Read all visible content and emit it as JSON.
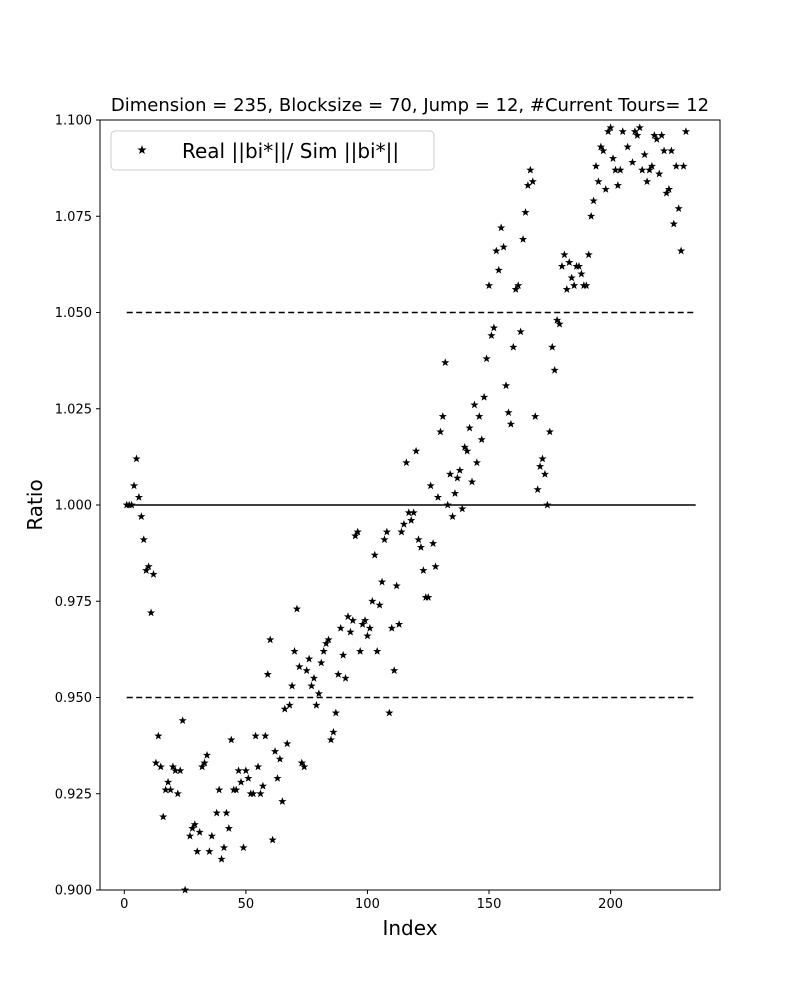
{
  "chart_data": {
    "type": "scatter",
    "title": "Dimension = 235, Blocksize = 70, Jump = 12, #Current Tours= 12",
    "xlabel": "Index",
    "ylabel": "Ratio",
    "xlim": [
      -10,
      245
    ],
    "ylim": [
      0.9,
      1.1
    ],
    "xticks": [
      0,
      50,
      100,
      150,
      200
    ],
    "yticks": [
      0.9,
      0.925,
      0.95,
      0.975,
      1.0,
      1.025,
      1.05,
      1.075,
      1.1
    ],
    "xtick_labels": [
      "0",
      "50",
      "100",
      "150",
      "200"
    ],
    "ytick_labels": [
      "0.900",
      "0.925",
      "0.950",
      "0.975",
      "1.000",
      "1.025",
      "1.050",
      "1.075",
      "1.100"
    ],
    "grid": false,
    "legend": {
      "position": "top-left",
      "entries": [
        "Real ||bi*||/ Sim ||bi*||"
      ]
    },
    "reference_lines": [
      {
        "y": 1.0,
        "style": "solid",
        "x_range": [
          1,
          235
        ]
      },
      {
        "y": 1.05,
        "style": "dashed",
        "x_range": [
          1,
          235
        ]
      },
      {
        "y": 0.95,
        "style": "dashed",
        "x_range": [
          1,
          235
        ]
      }
    ],
    "series": [
      {
        "name": "Real ||bi*||/ Sim ||bi*||",
        "marker": "star",
        "color": "#000000",
        "points": [
          [
            1,
            1.0
          ],
          [
            2,
            1.0
          ],
          [
            3,
            1.0
          ],
          [
            4,
            1.005
          ],
          [
            5,
            1.012
          ],
          [
            6,
            1.002
          ],
          [
            7,
            0.997
          ],
          [
            8,
            0.991
          ],
          [
            9,
            0.983
          ],
          [
            10,
            0.984
          ],
          [
            11,
            0.972
          ],
          [
            12,
            0.982
          ],
          [
            13,
            0.933
          ],
          [
            14,
            0.94
          ],
          [
            15,
            0.932
          ],
          [
            16,
            0.919
          ],
          [
            17,
            0.926
          ],
          [
            18,
            0.928
          ],
          [
            19,
            0.926
          ],
          [
            20,
            0.932
          ],
          [
            21,
            0.931
          ],
          [
            22,
            0.925
          ],
          [
            23,
            0.931
          ],
          [
            24,
            0.944
          ],
          [
            25,
            0.9
          ],
          [
            27,
            0.914
          ],
          [
            28,
            0.916
          ],
          [
            29,
            0.917
          ],
          [
            30,
            0.91
          ],
          [
            31,
            0.915
          ],
          [
            32,
            0.932
          ],
          [
            33,
            0.933
          ],
          [
            34,
            0.935
          ],
          [
            35,
            0.91
          ],
          [
            36,
            0.914
          ],
          [
            38,
            0.92
          ],
          [
            39,
            0.926
          ],
          [
            40,
            0.908
          ],
          [
            41,
            0.911
          ],
          [
            42,
            0.92
          ],
          [
            43,
            0.916
          ],
          [
            44,
            0.939
          ],
          [
            45,
            0.926
          ],
          [
            46,
            0.926
          ],
          [
            47,
            0.931
          ],
          [
            48,
            0.928
          ],
          [
            49,
            0.911
          ],
          [
            50,
            0.931
          ],
          [
            51,
            0.929
          ],
          [
            52,
            0.925
          ],
          [
            53,
            0.925
          ],
          [
            54,
            0.94
          ],
          [
            55,
            0.932
          ],
          [
            56,
            0.925
          ],
          [
            57,
            0.927
          ],
          [
            58,
            0.94
          ],
          [
            59,
            0.956
          ],
          [
            60,
            0.965
          ],
          [
            61,
            0.913
          ],
          [
            62,
            0.936
          ],
          [
            63,
            0.929
          ],
          [
            64,
            0.934
          ],
          [
            65,
            0.923
          ],
          [
            66,
            0.947
          ],
          [
            67,
            0.938
          ],
          [
            68,
            0.948
          ],
          [
            69,
            0.953
          ],
          [
            70,
            0.962
          ],
          [
            71,
            0.973
          ],
          [
            72,
            0.958
          ],
          [
            73,
            0.933
          ],
          [
            74,
            0.932
          ],
          [
            75,
            0.957
          ],
          [
            76,
            0.96
          ],
          [
            77,
            0.953
          ],
          [
            78,
            0.955
          ],
          [
            79,
            0.948
          ],
          [
            80,
            0.951
          ],
          [
            81,
            0.959
          ],
          [
            82,
            0.962
          ],
          [
            83,
            0.964
          ],
          [
            84,
            0.965
          ],
          [
            85,
            0.939
          ],
          [
            86,
            0.941
          ],
          [
            87,
            0.946
          ],
          [
            88,
            0.956
          ],
          [
            89,
            0.968
          ],
          [
            90,
            0.961
          ],
          [
            91,
            0.955
          ],
          [
            92,
            0.971
          ],
          [
            93,
            0.967
          ],
          [
            94,
            0.97
          ],
          [
            95,
            0.992
          ],
          [
            96,
            0.993
          ],
          [
            97,
            0.962
          ],
          [
            98,
            0.969
          ],
          [
            99,
            0.97
          ],
          [
            100,
            0.966
          ],
          [
            101,
            0.968
          ],
          [
            102,
            0.975
          ],
          [
            103,
            0.987
          ],
          [
            104,
            0.962
          ],
          [
            105,
            0.974
          ],
          [
            106,
            0.98
          ],
          [
            107,
            0.991
          ],
          [
            108,
            0.993
          ],
          [
            109,
            0.946
          ],
          [
            110,
            0.968
          ],
          [
            111,
            0.957
          ],
          [
            112,
            0.979
          ],
          [
            113,
            0.969
          ],
          [
            114,
            0.993
          ],
          [
            115,
            0.995
          ],
          [
            116,
            1.011
          ],
          [
            117,
            0.998
          ],
          [
            118,
            0.996
          ],
          [
            119,
            0.998
          ],
          [
            120,
            1.014
          ],
          [
            121,
            0.991
          ],
          [
            122,
            0.989
          ],
          [
            123,
            0.983
          ],
          [
            124,
            0.976
          ],
          [
            125,
            0.976
          ],
          [
            126,
            1.005
          ],
          [
            127,
            0.99
          ],
          [
            128,
            0.984
          ],
          [
            129,
            1.002
          ],
          [
            130,
            1.019
          ],
          [
            131,
            1.023
          ],
          [
            132,
            1.037
          ],
          [
            133,
            1.0
          ],
          [
            134,
            1.008
          ],
          [
            135,
            0.997
          ],
          [
            136,
            1.003
          ],
          [
            137,
            1.007
          ],
          [
            138,
            1.009
          ],
          [
            139,
            0.999
          ],
          [
            140,
            1.015
          ],
          [
            141,
            1.014
          ],
          [
            142,
            1.02
          ],
          [
            143,
            1.006
          ],
          [
            144,
            1.026
          ],
          [
            145,
            1.011
          ],
          [
            146,
            1.023
          ],
          [
            147,
            1.017
          ],
          [
            148,
            1.028
          ],
          [
            149,
            1.038
          ],
          [
            150,
            1.057
          ],
          [
            151,
            1.044
          ],
          [
            152,
            1.046
          ],
          [
            153,
            1.066
          ],
          [
            154,
            1.061
          ],
          [
            155,
            1.072
          ],
          [
            156,
            1.067
          ],
          [
            157,
            1.031
          ],
          [
            158,
            1.024
          ],
          [
            159,
            1.021
          ],
          [
            160,
            1.041
          ],
          [
            161,
            1.056
          ],
          [
            162,
            1.057
          ],
          [
            163,
            1.045
          ],
          [
            164,
            1.069
          ],
          [
            165,
            1.076
          ],
          [
            166,
            1.083
          ],
          [
            167,
            1.087
          ],
          [
            168,
            1.084
          ],
          [
            169,
            1.023
          ],
          [
            170,
            1.004
          ],
          [
            171,
            1.01
          ],
          [
            172,
            1.012
          ],
          [
            173,
            1.008
          ],
          [
            174,
            1.0
          ],
          [
            175,
            1.019
          ],
          [
            176,
            1.041
          ],
          [
            177,
            1.035
          ],
          [
            178,
            1.048
          ],
          [
            179,
            1.047
          ],
          [
            180,
            1.062
          ],
          [
            181,
            1.065
          ],
          [
            182,
            1.056
          ],
          [
            183,
            1.063
          ],
          [
            184,
            1.059
          ],
          [
            185,
            1.057
          ],
          [
            186,
            1.062
          ],
          [
            187,
            1.062
          ],
          [
            188,
            1.06
          ],
          [
            189,
            1.057
          ],
          [
            190,
            1.057
          ],
          [
            191,
            1.065
          ],
          [
            192,
            1.075
          ],
          [
            193,
            1.079
          ],
          [
            194,
            1.088
          ],
          [
            195,
            1.084
          ],
          [
            196,
            1.093
          ],
          [
            197,
            1.092
          ],
          [
            198,
            1.082
          ],
          [
            199,
            1.097
          ],
          [
            200,
            1.098
          ],
          [
            201,
            1.09
          ],
          [
            202,
            1.087
          ],
          [
            203,
            1.083
          ],
          [
            204,
            1.087
          ],
          [
            205,
            1.097
          ],
          [
            207,
            1.093
          ],
          [
            209,
            1.089
          ],
          [
            210,
            1.097
          ],
          [
            211,
            1.096
          ],
          [
            212,
            1.098
          ],
          [
            213,
            1.087
          ],
          [
            214,
            1.091
          ],
          [
            215,
            1.084
          ],
          [
            216,
            1.087
          ],
          [
            217,
            1.088
          ],
          [
            218,
            1.096
          ],
          [
            219,
            1.095
          ],
          [
            220,
            1.086
          ],
          [
            221,
            1.096
          ],
          [
            222,
            1.092
          ],
          [
            223,
            1.081
          ],
          [
            224,
            1.082
          ],
          [
            225,
            1.092
          ],
          [
            226,
            1.073
          ],
          [
            227,
            1.088
          ],
          [
            228,
            1.077
          ],
          [
            229,
            1.066
          ],
          [
            230,
            1.088
          ],
          [
            231,
            1.097
          ]
        ]
      }
    ]
  }
}
